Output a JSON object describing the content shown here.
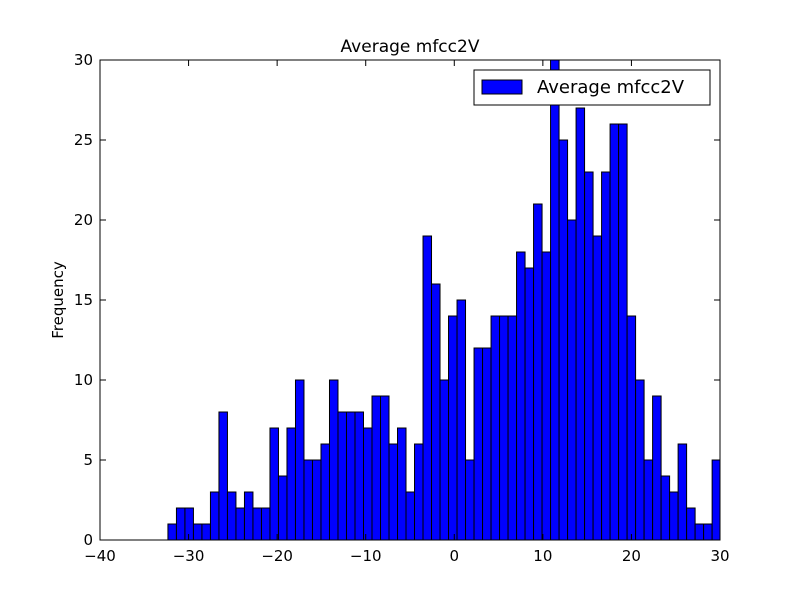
{
  "chart_data": {
    "type": "bar",
    "title": "Average mfcc2V",
    "xlabel": "",
    "ylabel": "Frequency",
    "xlim": [
      -40,
      30
    ],
    "ylim": [
      0,
      30
    ],
    "x_ticks": [
      -40,
      -30,
      -20,
      -10,
      0,
      10,
      20,
      30
    ],
    "x_tick_labels": [
      "−40",
      "−30",
      "−20",
      "−10",
      "0",
      "10",
      "20",
      "30"
    ],
    "y_ticks": [
      0,
      5,
      10,
      15,
      20,
      25,
      30
    ],
    "y_tick_labels": [
      "0",
      "5",
      "10",
      "15",
      "20",
      "25",
      "30"
    ],
    "grid": false,
    "legend_position": "top-right",
    "bar_color": "#0000ff",
    "edge_color": "#000000",
    "series": [
      {
        "name": "Average mfcc2V",
        "bin_start": -32.33,
        "bin_width": 0.96,
        "values": [
          1,
          2,
          2,
          1,
          1,
          3,
          8,
          3,
          2,
          3,
          2,
          2,
          7,
          4,
          7,
          10,
          5,
          5,
          6,
          10,
          8,
          8,
          8,
          7,
          9,
          9,
          6,
          7,
          3,
          6,
          19,
          16,
          10,
          14,
          15,
          5,
          12,
          12,
          14,
          14,
          14,
          18,
          17,
          21,
          18,
          30,
          25,
          20,
          27,
          23,
          19,
          23,
          26,
          26,
          14,
          10,
          5,
          9,
          4,
          3,
          6,
          2,
          1,
          1,
          5
        ]
      }
    ]
  }
}
